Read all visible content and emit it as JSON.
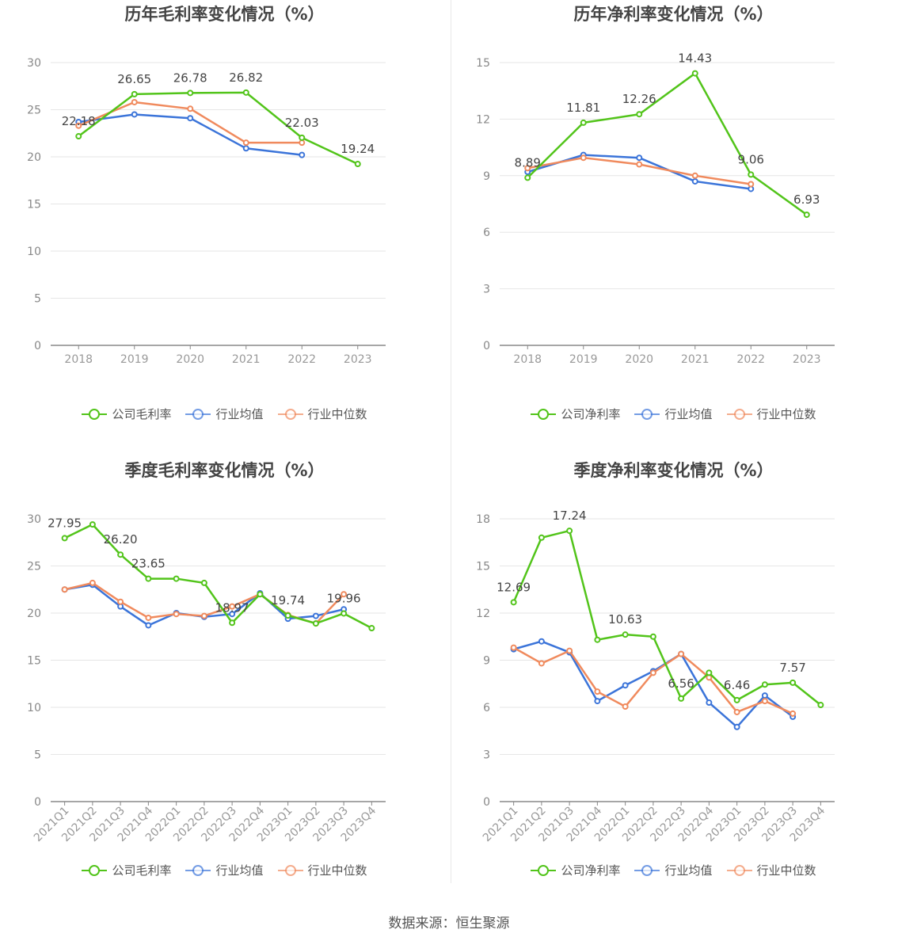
{
  "source": "数据来源：恒生聚源",
  "colors": {
    "company": "#52c41a",
    "avg": "#3b74d9",
    "median": "#f08a5d"
  },
  "chart_data": [
    {
      "id": "annual-gross",
      "type": "line",
      "title": "历年毛利率变化情况（%）",
      "categories": [
        "2018",
        "2019",
        "2020",
        "2021",
        "2022",
        "2023"
      ],
      "ylim": [
        0,
        30
      ],
      "yticks": [
        0,
        5,
        10,
        15,
        20,
        25,
        30
      ],
      "rotate_x": false,
      "legend": [
        "公司毛利率",
        "行业均值",
        "行业中位数"
      ],
      "series": [
        {
          "name": "公司毛利率",
          "key": "company",
          "values": [
            22.18,
            26.65,
            26.78,
            26.82,
            22.03,
            19.24
          ],
          "labels": [
            "22.18",
            "26.65",
            "26.78",
            "26.82",
            "22.03",
            "19.24"
          ]
        },
        {
          "name": "行业均值",
          "key": "avg",
          "values": [
            23.7,
            24.5,
            24.1,
            20.9,
            20.2,
            null
          ]
        },
        {
          "name": "行业中位数",
          "key": "median",
          "values": [
            23.3,
            25.8,
            25.1,
            21.5,
            21.5,
            null
          ]
        }
      ]
    },
    {
      "id": "annual-net",
      "type": "line",
      "title": "历年净利率变化情况（%）",
      "categories": [
        "2018",
        "2019",
        "2020",
        "2021",
        "2022",
        "2023"
      ],
      "ylim": [
        0,
        15
      ],
      "yticks": [
        0,
        3,
        6,
        9,
        12,
        15
      ],
      "rotate_x": false,
      "legend": [
        "公司净利率",
        "行业均值",
        "行业中位数"
      ],
      "series": [
        {
          "name": "公司净利率",
          "key": "company",
          "values": [
            8.89,
            11.81,
            12.26,
            14.43,
            9.06,
            6.93
          ],
          "labels": [
            "8.89",
            "11.81",
            "12.26",
            "14.43",
            "9.06",
            "6.93"
          ]
        },
        {
          "name": "行业均值",
          "key": "avg",
          "values": [
            9.2,
            10.1,
            9.95,
            8.7,
            8.3,
            null
          ]
        },
        {
          "name": "行业中位数",
          "key": "median",
          "values": [
            9.4,
            9.95,
            9.6,
            9.0,
            8.55,
            null
          ]
        }
      ]
    },
    {
      "id": "quarterly-gross",
      "type": "line",
      "title": "季度毛利率变化情况（%）",
      "categories": [
        "2021Q1",
        "2021Q2",
        "2021Q3",
        "2021Q4",
        "2022Q1",
        "2022Q2",
        "2022Q3",
        "2022Q4",
        "2023Q1",
        "2023Q2",
        "2023Q3",
        "2023Q4"
      ],
      "ylim": [
        0,
        30
      ],
      "yticks": [
        0,
        5,
        10,
        15,
        20,
        25,
        30
      ],
      "rotate_x": true,
      "legend": [
        "公司毛利率",
        "行业均值",
        "行业中位数"
      ],
      "series": [
        {
          "name": "公司毛利率",
          "key": "company",
          "values": [
            27.95,
            29.4,
            26.2,
            23.65,
            23.65,
            23.2,
            18.97,
            22.0,
            19.74,
            18.9,
            19.96,
            18.4
          ],
          "labels": [
            "27.95",
            "",
            "26.20",
            "23.65",
            "",
            "",
            "18.97",
            "",
            "19.74",
            "",
            "19.96",
            ""
          ]
        },
        {
          "name": "行业均值",
          "key": "avg",
          "values": [
            22.5,
            23.0,
            20.7,
            18.7,
            20.0,
            19.6,
            19.9,
            22.1,
            19.4,
            19.7,
            20.4,
            null
          ]
        },
        {
          "name": "行业中位数",
          "key": "median",
          "values": [
            22.5,
            23.2,
            21.2,
            19.5,
            19.9,
            19.7,
            20.7,
            22.0,
            19.8,
            18.9,
            22.0,
            null
          ]
        }
      ]
    },
    {
      "id": "quarterly-net",
      "type": "line",
      "title": "季度净利率变化情况（%）",
      "categories": [
        "2021Q1",
        "2021Q2",
        "2021Q3",
        "2021Q4",
        "2022Q1",
        "2022Q2",
        "2022Q3",
        "2022Q4",
        "2023Q1",
        "2023Q2",
        "2023Q3",
        "2023Q4"
      ],
      "ylim": [
        0,
        18
      ],
      "yticks": [
        0,
        3,
        6,
        9,
        12,
        15,
        18
      ],
      "rotate_x": true,
      "legend": [
        "公司净利率",
        "行业均值",
        "行业中位数"
      ],
      "series": [
        {
          "name": "公司净利率",
          "key": "company",
          "values": [
            12.69,
            16.8,
            17.24,
            10.3,
            10.63,
            10.5,
            6.56,
            8.2,
            6.46,
            7.45,
            7.57,
            6.15
          ],
          "labels": [
            "12.69",
            "",
            "17.24",
            "",
            "10.63",
            "",
            "6.56",
            "",
            "6.46",
            "",
            "7.57",
            ""
          ]
        },
        {
          "name": "行业均值",
          "key": "avg",
          "values": [
            9.7,
            10.2,
            9.5,
            6.4,
            7.4,
            8.3,
            9.4,
            6.3,
            4.75,
            6.75,
            5.4,
            null
          ]
        },
        {
          "name": "行业中位数",
          "key": "median",
          "values": [
            9.8,
            8.8,
            9.6,
            7.0,
            6.05,
            8.2,
            9.4,
            7.9,
            5.7,
            6.4,
            5.6,
            null
          ]
        }
      ]
    }
  ]
}
